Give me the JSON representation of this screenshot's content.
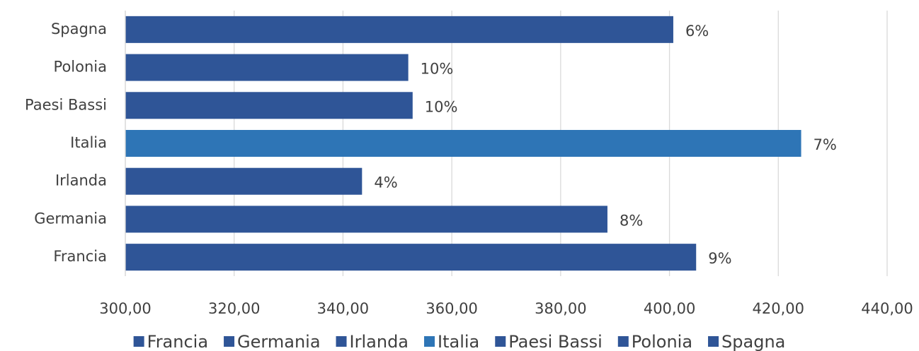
{
  "chart_data": {
    "type": "barh",
    "categories": [
      "Francia",
      "Germania",
      "Irlanda",
      "Italia",
      "Paesi Bassi",
      "Polonia",
      "Spagna"
    ],
    "values": [
      404.9,
      388.6,
      343.5,
      424.2,
      352.8,
      352.0,
      400.7
    ],
    "bar_labels": [
      "9%",
      "8%",
      "4%",
      "7%",
      "10%",
      "10%",
      "6%"
    ],
    "colors": [
      "#2f5597",
      "#2f5597",
      "#2f5597",
      "#2e75b6",
      "#2f5597",
      "#2f5597",
      "#2f5597"
    ],
    "xlim": [
      300,
      440
    ],
    "xticks": [
      {
        "value": 300,
        "label": "300,00"
      },
      {
        "value": 320,
        "label": "320,00"
      },
      {
        "value": 340,
        "label": "340,00"
      },
      {
        "value": 360,
        "label": "360,00"
      },
      {
        "value": 380,
        "label": "380,00"
      },
      {
        "value": 400,
        "label": "400,00"
      },
      {
        "value": 420,
        "label": "420,00"
      },
      {
        "value": 440,
        "label": "440,00"
      }
    ],
    "grid": true,
    "legend": "bottom"
  }
}
